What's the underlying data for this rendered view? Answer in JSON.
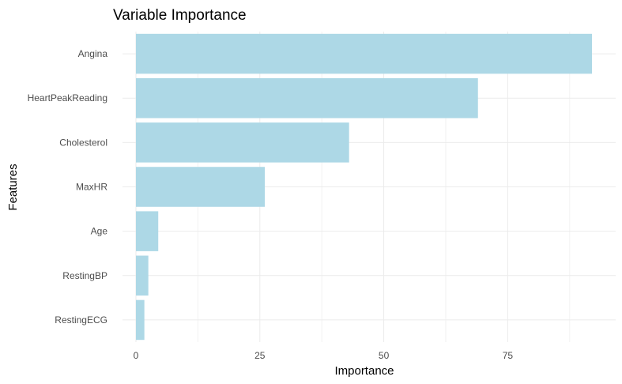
{
  "chart_data": {
    "type": "bar",
    "orientation": "horizontal",
    "title": "Variable Importance",
    "xlabel": "Importance",
    "ylabel": "Features",
    "categories": [
      "Angina",
      "HeartPeakReading",
      "Cholesterol",
      "MaxHR",
      "Age",
      "RestingBP",
      "RestingECG"
    ],
    "values": [
      92,
      69,
      43,
      26,
      4.5,
      2.5,
      1.7
    ],
    "xlim": [
      0,
      92
    ],
    "xticks": [
      0,
      25,
      50,
      75
    ],
    "bar_color": "#add8e6",
    "grid": true,
    "legend": "none"
  }
}
